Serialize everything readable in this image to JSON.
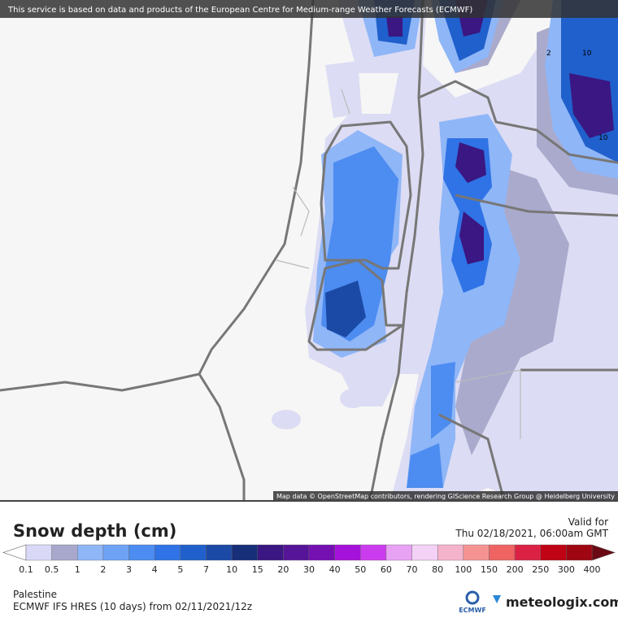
{
  "header": {
    "notice": "This service is based on data and products of the European Centre for Medium-range Weather Forecasts (ECMWF)"
  },
  "map": {
    "attribution": "Map data © OpenStreetMap contributors, rendering GIScience Research Group @ Heidelberg University",
    "contour_labels": [
      "2",
      "10",
      "10"
    ]
  },
  "legend": {
    "title": "Snow depth (cm)",
    "valid_label": "Valid for",
    "valid_time": "Thu 02/18/2021, 06:00am GMT",
    "ticks": [
      "0.1",
      "0.5",
      "1",
      "2",
      "3",
      "4",
      "5",
      "7",
      "10",
      "15",
      "20",
      "30",
      "40",
      "50",
      "60",
      "70",
      "80",
      "100",
      "150",
      "200",
      "250",
      "300",
      "400"
    ],
    "colors": [
      "#d9d9f7",
      "#a8a8cc",
      "#8fb6f7",
      "#6ea2f5",
      "#4d8cf0",
      "#2f73e6",
      "#2060cc",
      "#1b49a6",
      "#172e78",
      "#3a1782",
      "#561598",
      "#7410b2",
      "#a512da",
      "#cc3cef",
      "#e8a2f4",
      "#f4d2f6",
      "#f5b3cb",
      "#f59393",
      "#ef6363",
      "#dc2244",
      "#bf0314",
      "#9e0612"
    ],
    "under_color": "#ffffff",
    "over_color": "#6b0a14"
  },
  "footer": {
    "region": "Palestine",
    "model": "ECMWF IFS HRES (10 days) from 02/11/2021/12z",
    "ecmwf_logo": "ECMWF",
    "site": "meteologix.com"
  }
}
